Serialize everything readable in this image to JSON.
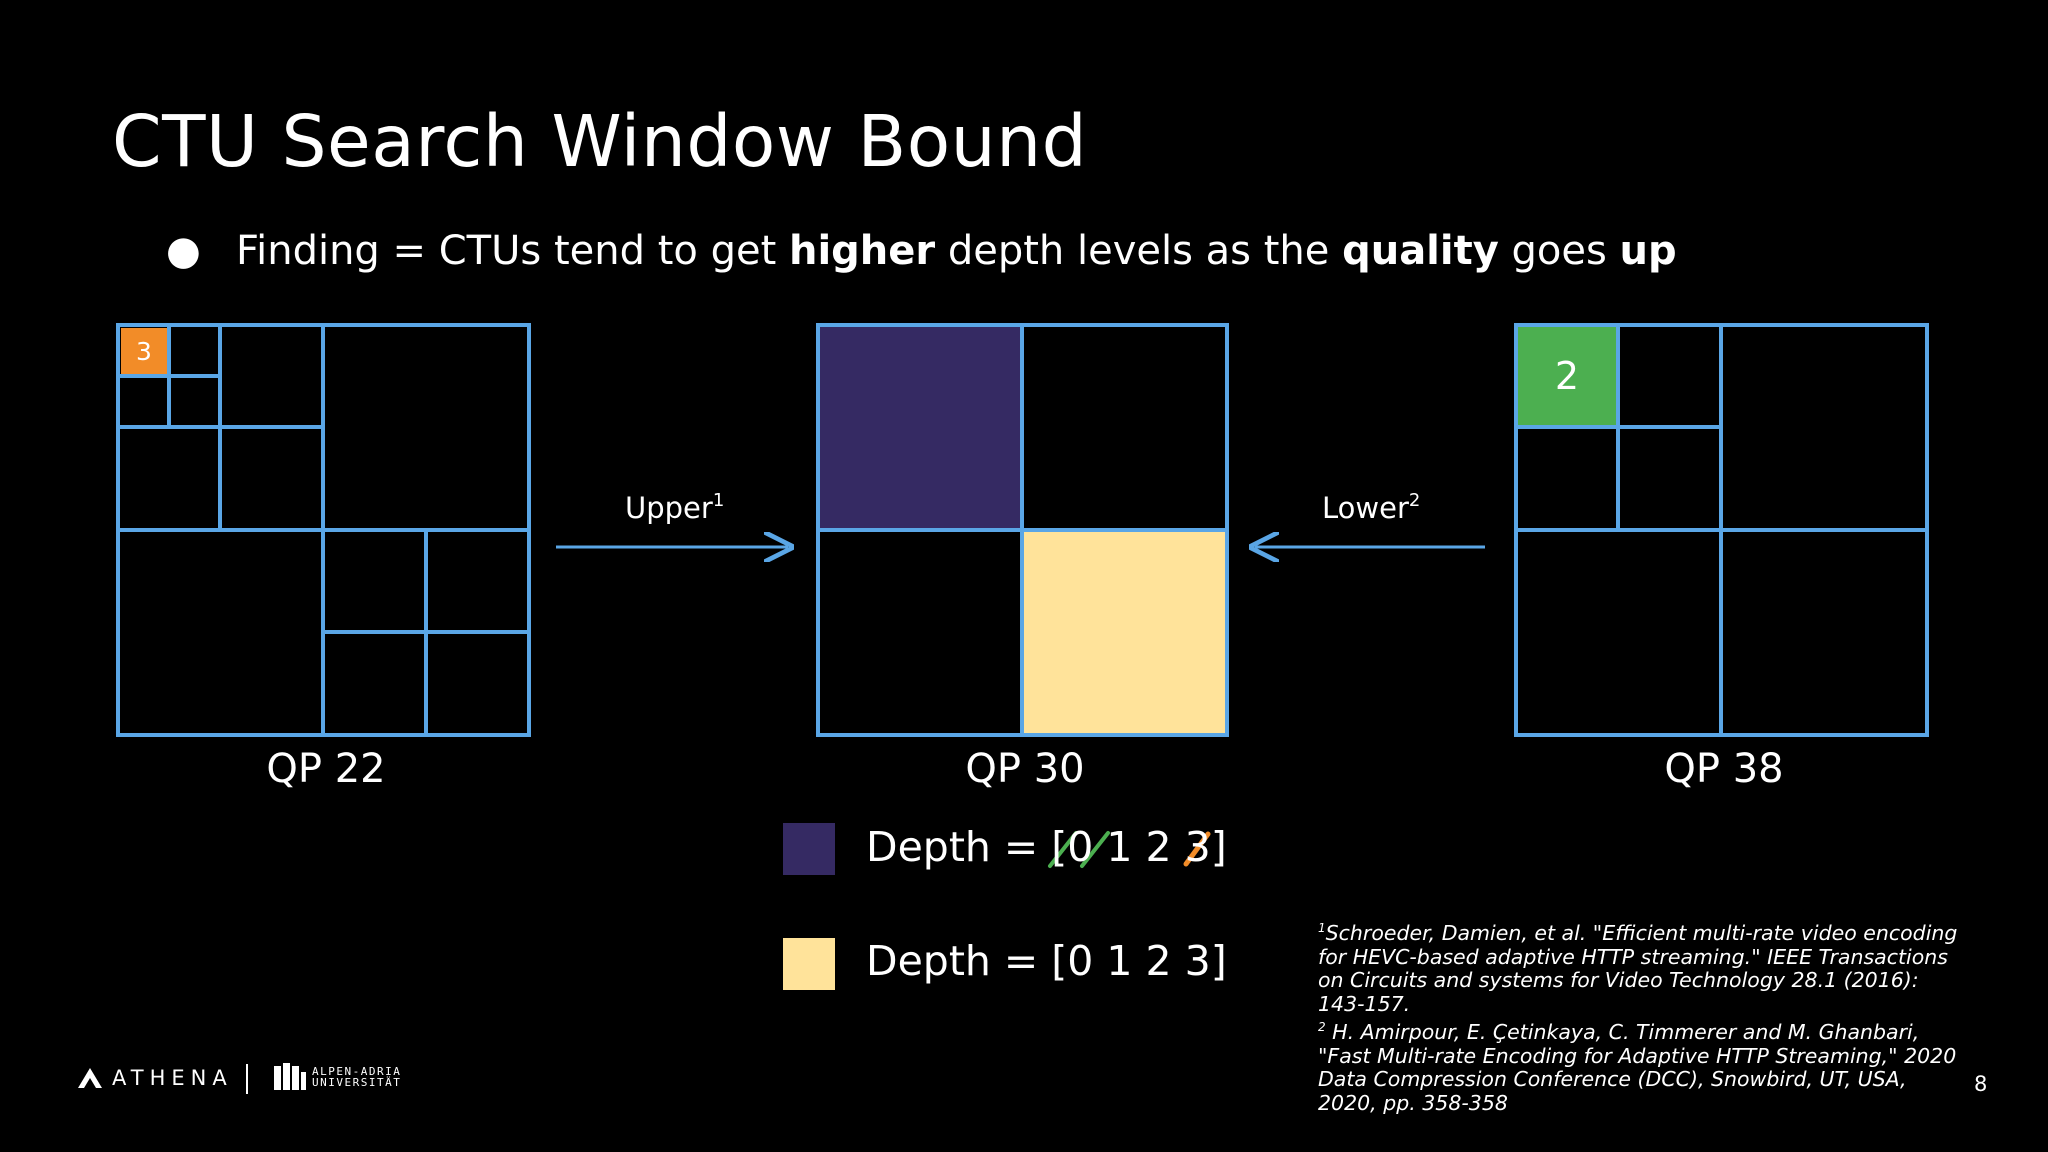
{
  "slide": {
    "title": "CTU Search Window Bound",
    "bullet": {
      "prefix": "Finding = CTUs tend to get ",
      "bold1": "higher",
      "mid": " depth levels as the ",
      "bold2": "quality",
      "mid2": " goes ",
      "bold3": "up"
    },
    "page_number": "8"
  },
  "diagram": {
    "qp_labels": [
      "QP 22",
      "QP 30",
      "QP 38"
    ],
    "upper_label": "Upper",
    "upper_sup": "1",
    "lower_label": "Lower",
    "lower_sup": "2",
    "qp22_badge": "3",
    "qp38_badge": "2",
    "colors": {
      "grid_line": "#5aa6e6",
      "orange": "#f28c28",
      "green": "#4caf50",
      "purple": "#352a63",
      "yellow": "#ffe39a",
      "green_strike": "#4caf50",
      "orange_strike": "#f28c28"
    }
  },
  "legend": {
    "item1_text": "Depth = [0 1 2 3]",
    "item2_text": "Depth = [0 1 2 3]"
  },
  "references": {
    "ref1_sup": "1",
    "ref1": "Schroeder, Damien, et al. \"Efficient multi-rate video encoding for HEVC-based adaptive HTTP streaming.\" IEEE Transactions on Circuits and systems for Video Technology 28.1 (2016): 143-157.",
    "ref2_sup": "2",
    "ref2": "H. Amirpour, E. Çetinkaya, C. Timmerer and M. Ghanbari, \"Fast Multi-rate Encoding for Adaptive HTTP Streaming,\" 2020 Data Compression Conference (DCC), Snowbird, UT, USA, 2020, pp. 358-358"
  },
  "logos": {
    "athena": "ATHENA",
    "aau_line1": "ALPEN-ADRIA",
    "aau_line2": "UNIVERSITÄT"
  }
}
